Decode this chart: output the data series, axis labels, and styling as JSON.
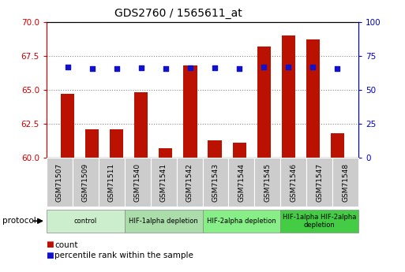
{
  "title": "GDS2760 / 1565611_at",
  "samples": [
    "GSM71507",
    "GSM71509",
    "GSM71511",
    "GSM71540",
    "GSM71541",
    "GSM71542",
    "GSM71543",
    "GSM71544",
    "GSM71545",
    "GSM71546",
    "GSM71547",
    "GSM71548"
  ],
  "count_values": [
    64.7,
    62.1,
    62.1,
    64.8,
    60.7,
    66.8,
    61.3,
    61.1,
    68.2,
    69.0,
    68.7,
    61.8
  ],
  "percentile_values": [
    66.5,
    65.7,
    65.7,
    66.0,
    65.7,
    66.3,
    66.0,
    65.8,
    66.5,
    66.8,
    66.5,
    65.8
  ],
  "ylim_left": [
    60,
    70
  ],
  "ylim_right": [
    0,
    100
  ],
  "yticks_left": [
    60,
    62.5,
    65,
    67.5,
    70
  ],
  "yticks_right": [
    0,
    25,
    50,
    75,
    100
  ],
  "bar_color": "#bb1100",
  "dot_color": "#1111cc",
  "groups": [
    {
      "label": "control",
      "start": 0,
      "end": 2,
      "color": "#cceecc"
    },
    {
      "label": "HIF-1alpha depletion",
      "start": 3,
      "end": 5,
      "color": "#aaddaa"
    },
    {
      "label": "HIF-2alpha depletion",
      "start": 6,
      "end": 8,
      "color": "#88ee88"
    },
    {
      "label": "HIF-1alpha HIF-2alpha\ndepletion",
      "start": 9,
      "end": 11,
      "color": "#44cc44"
    }
  ],
  "protocol_label": "protocol",
  "legend_items": [
    {
      "color": "#bb1100",
      "label": "count"
    },
    {
      "color": "#1111cc",
      "label": "percentile rank within the sample"
    }
  ],
  "tick_label_color_left": "#cc0000",
  "tick_label_color_right": "#0000cc",
  "background_color": "#ffffff",
  "plot_bg_color": "#ffffff",
  "xtick_bg_color": "#cccccc"
}
